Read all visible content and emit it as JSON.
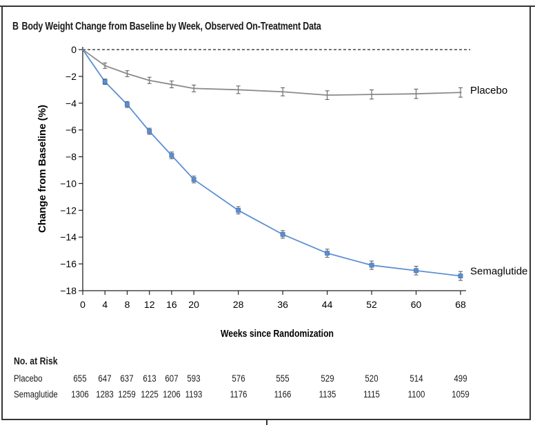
{
  "panel": {
    "letter": "B",
    "title": "Body Weight Change from Baseline by Week, Observed On-Treatment Data"
  },
  "chart_data": {
    "type": "line",
    "x": [
      0,
      4,
      8,
      12,
      16,
      20,
      28,
      36,
      44,
      52,
      60,
      68
    ],
    "x_ticks": [
      "0",
      "4",
      "8",
      "12",
      "16",
      "20",
      "28",
      "36",
      "44",
      "52",
      "60",
      "68"
    ],
    "y_ticks": [
      "0",
      "−2",
      "−4",
      "−6",
      "−8",
      "−10",
      "−12",
      "−14",
      "−16",
      "−18"
    ],
    "xlabel": "Weeks since Randomization",
    "ylabel": "Change from Baseline (%)",
    "xlim": [
      0,
      68
    ],
    "ylim": [
      -18,
      0
    ],
    "reference_line_y": 0,
    "series": [
      {
        "name": "Placebo",
        "color": "#8a8a8a",
        "marker": "error-bar",
        "values": [
          0,
          -1.2,
          -1.8,
          -2.3,
          -2.6,
          -2.9,
          -3.0,
          -3.15,
          -3.4,
          -3.35,
          -3.3,
          -3.2
        ],
        "errors": [
          0,
          0.1,
          0.12,
          0.13,
          0.15,
          0.15,
          0.18,
          0.2,
          0.22,
          0.24,
          0.25,
          0.25
        ]
      },
      {
        "name": "Semaglutide",
        "color": "#5b8fd4",
        "marker": "square",
        "values": [
          0,
          -2.4,
          -4.1,
          -6.1,
          -7.9,
          -9.7,
          -12.0,
          -13.8,
          -15.2,
          -16.1,
          -16.5,
          -16.9
        ],
        "errors": [
          0,
          0.1,
          0.12,
          0.13,
          0.15,
          0.15,
          0.17,
          0.18,
          0.2,
          0.21,
          0.22,
          0.23
        ]
      }
    ]
  },
  "risk_table": {
    "header": "No. at Risk",
    "rows": [
      {
        "label": "Placebo",
        "values": [
          "655",
          "647",
          "637",
          "613",
          "607",
          "593",
          "576",
          "555",
          "529",
          "520",
          "514",
          "499"
        ]
      },
      {
        "label": "Semaglutide",
        "values": [
          "1306",
          "1283",
          "1259",
          "1225",
          "1206",
          "1193",
          "1176",
          "1166",
          "1135",
          "1115",
          "1100",
          "1059"
        ]
      }
    ]
  }
}
